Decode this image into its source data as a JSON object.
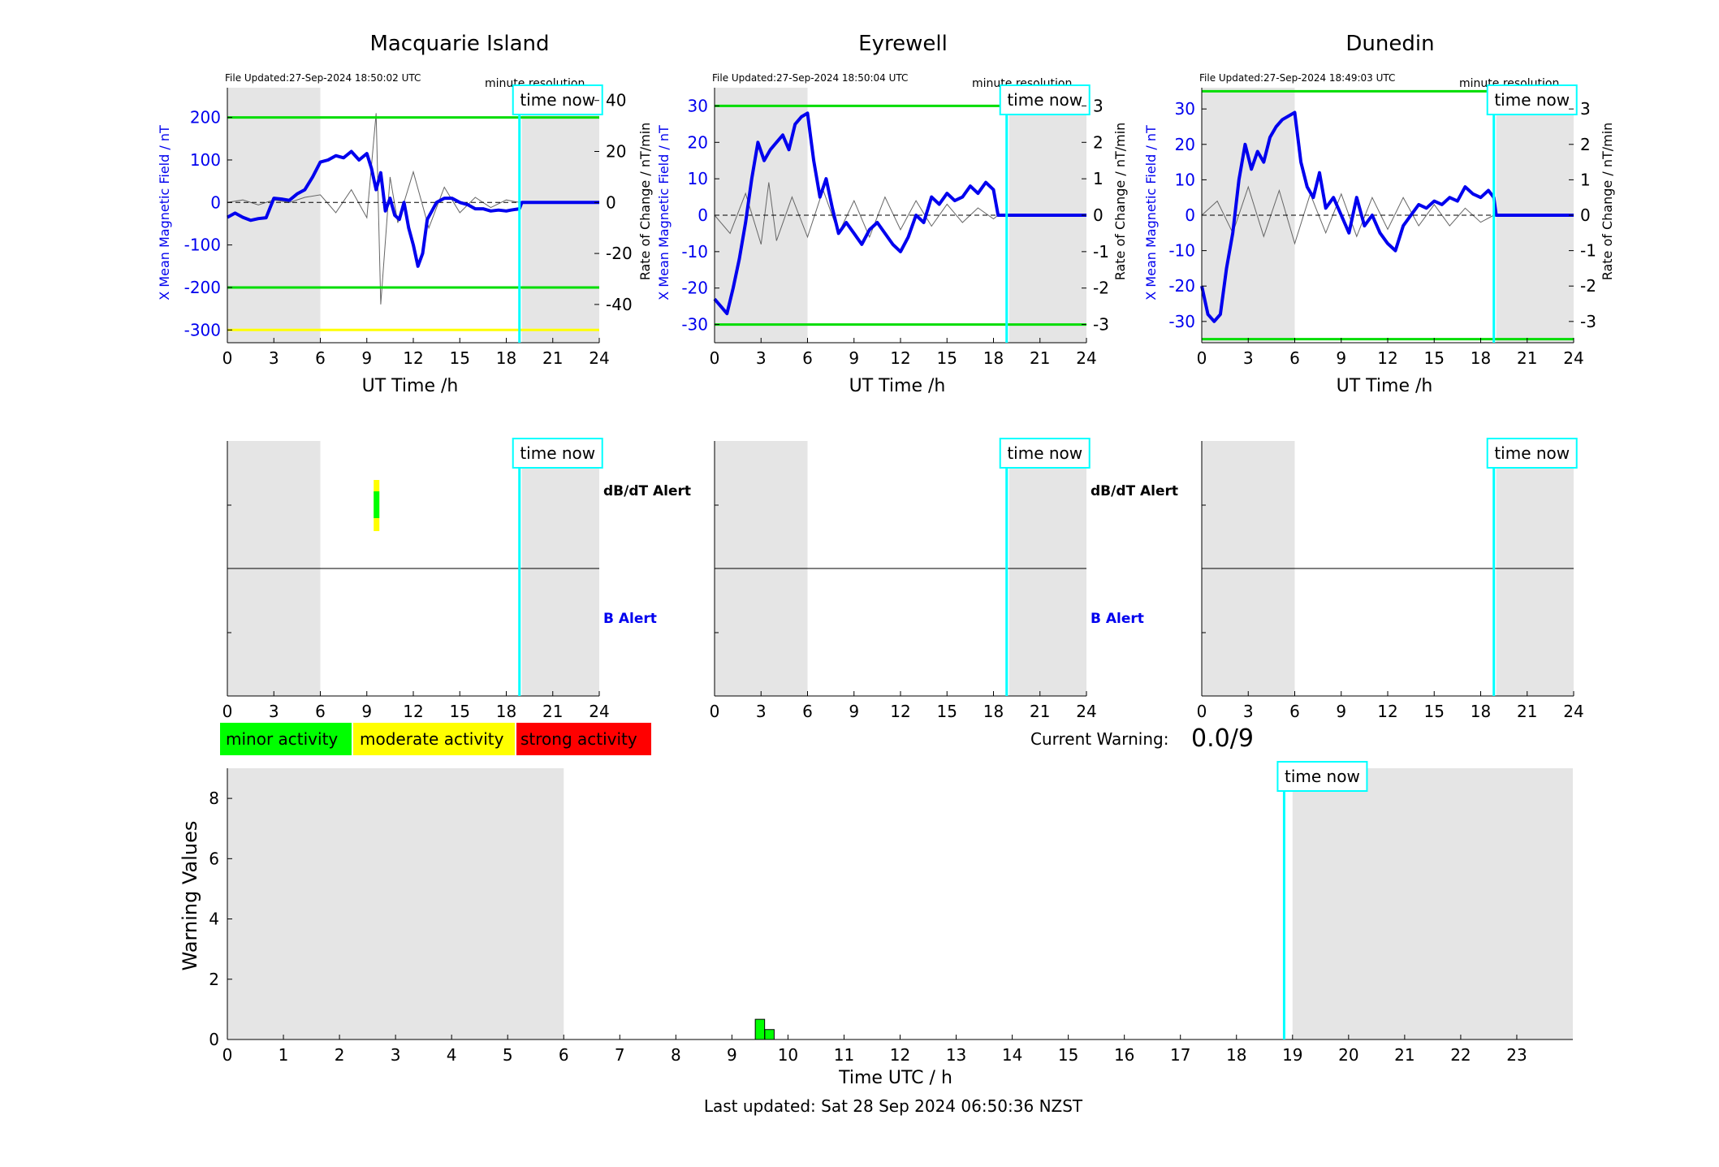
{
  "stations": [
    {
      "title": "Macquarie Island",
      "file_updated": "File Updated:27-Sep-2024 18:50:02 UTC",
      "resolution": "minute resolution",
      "ylabel": "X Mean Magnetic Field / nT",
      "y2label": "Rate of Change / nT/min",
      "xlabel": "UT Time /h",
      "time_now_label": "time now",
      "dbdt_alert_label": "dB/dT Alert",
      "b_alert_label": "B Alert"
    },
    {
      "title": "Eyrewell",
      "file_updated": "File Updated:27-Sep-2024 18:50:04 UTC",
      "resolution": "minute resolution",
      "ylabel": "X Mean Magnetic Field / nT",
      "y2label": "Rate of Change / nT/min",
      "xlabel": "UT Time /h",
      "time_now_label": "time now",
      "dbdt_alert_label": "dB/dT Alert",
      "b_alert_label": "B Alert"
    },
    {
      "title": "Dunedin",
      "file_updated": "File Updated:27-Sep-2024 18:49:03 UTC",
      "resolution": "minute resolution",
      "ylabel": "X Mean Magnetic Field / nT",
      "y2label": "Rate of Change / nT/min",
      "xlabel": "UT Time /h",
      "time_now_label": "time now",
      "dbdt_alert_label": "",
      "b_alert_label": ""
    }
  ],
  "legend": {
    "minor": "minor activity",
    "moderate": "moderate activity",
    "strong": "strong activity"
  },
  "current_warning": {
    "label": "Current Warning:",
    "value": "0.0/9"
  },
  "warning_chart": {
    "ylabel": "Warning Values",
    "xlabel": "Time UTC / h",
    "time_now_label": "time now"
  },
  "last_updated": "Last updated: Sat 28 Sep 2024 06:50:36 NZST",
  "colors": {
    "field_line": "#0000ee",
    "threshold_green": "#00dd00",
    "threshold_yellow": "#ffff00",
    "time_now": "#00ffff",
    "shade": "#e5e5e5",
    "minor": "#00ff00",
    "moderate": "#ffff00",
    "strong": "#ff0000"
  },
  "chart_data": [
    {
      "type": "line",
      "title": "Macquarie Island",
      "xlabel": "UT Time /h",
      "ylabel": "X Mean Magnetic Field / nT",
      "y2label": "Rate of Change / nT/min",
      "xlim": [
        0,
        24
      ],
      "ylim": [
        -330,
        270
      ],
      "y2lim": [
        -55,
        45
      ],
      "xticks": [
        0,
        3,
        6,
        9,
        12,
        15,
        18,
        21,
        24
      ],
      "yticks": [
        -300,
        -200,
        -100,
        0,
        100,
        200
      ],
      "y2ticks": [
        -40,
        -20,
        0,
        20,
        40
      ],
      "thresholds": [
        {
          "value": 200,
          "color": "green"
        },
        {
          "value": -200,
          "color": "green"
        },
        {
          "value": -300,
          "color": "yellow"
        }
      ],
      "shaded_hours": [
        [
          0,
          6
        ],
        [
          19,
          24
        ]
      ],
      "time_now": 18.85,
      "grid": false,
      "series": [
        {
          "axis": "left",
          "color": "blue",
          "x": [
            0,
            0.5,
            1,
            1.5,
            2,
            2.5,
            3,
            3.5,
            4,
            4.5,
            5,
            5.5,
            6,
            6.5,
            7,
            7.5,
            8,
            8.5,
            9,
            9.3,
            9.6,
            9.9,
            10.2,
            10.5,
            10.8,
            11.1,
            11.4,
            11.7,
            12,
            12.3,
            12.6,
            12.9,
            13.2,
            13.5,
            14,
            14.5,
            15,
            15.5,
            16,
            16.5,
            17,
            17.5,
            18,
            18.3,
            18.85,
            19,
            24
          ],
          "y": [
            -35,
            -25,
            -35,
            -42,
            -38,
            -36,
            10,
            8,
            5,
            20,
            30,
            60,
            95,
            100,
            110,
            105,
            120,
            100,
            115,
            80,
            30,
            70,
            -20,
            10,
            -30,
            -40,
            0,
            -60,
            -100,
            -150,
            -120,
            -40,
            -20,
            0,
            10,
            10,
            0,
            -5,
            -15,
            -15,
            -20,
            -18,
            -20,
            -18,
            -15,
            0,
            0
          ]
        },
        {
          "axis": "right",
          "color": "gray",
          "x": [
            0,
            1,
            2,
            3,
            4,
            5,
            6,
            7,
            8,
            9,
            9.6,
            9.9,
            10.5,
            11,
            12,
            13,
            14,
            15,
            16,
            17,
            18,
            18.85
          ],
          "y": [
            0,
            1,
            -1,
            1,
            0,
            2,
            3,
            -4,
            5,
            -6,
            35,
            -40,
            10,
            -8,
            12,
            -10,
            6,
            -4,
            2,
            -2,
            1,
            0
          ]
        }
      ]
    },
    {
      "type": "line",
      "title": "Eyrewell",
      "xlabel": "UT Time /h",
      "ylabel": "X Mean Magnetic Field / nT",
      "y2label": "Rate of Change / nT/min",
      "xlim": [
        0,
        24
      ],
      "ylim": [
        -35,
        35
      ],
      "y2lim": [
        -3.5,
        3.5
      ],
      "xticks": [
        0,
        3,
        6,
        9,
        12,
        15,
        18,
        21,
        24
      ],
      "yticks": [
        -30,
        -20,
        -10,
        0,
        10,
        20,
        30
      ],
      "y2ticks": [
        -3,
        -2,
        -1,
        0,
        1,
        2,
        3
      ],
      "thresholds": [
        {
          "value": 30,
          "color": "green"
        },
        {
          "value": -30,
          "color": "green"
        }
      ],
      "shaded_hours": [
        [
          0,
          6
        ],
        [
          19,
          24
        ]
      ],
      "time_now": 18.85,
      "grid": false,
      "series": [
        {
          "axis": "left",
          "color": "blue",
          "x": [
            0,
            0.4,
            0.8,
            1.2,
            1.6,
            2,
            2.4,
            2.8,
            3.2,
            3.6,
            4,
            4.4,
            4.8,
            5.2,
            5.6,
            6,
            6.4,
            6.8,
            7.2,
            7.6,
            8,
            8.5,
            9,
            9.5,
            10,
            10.5,
            11,
            11.5,
            12,
            12.5,
            13,
            13.5,
            14,
            14.5,
            15,
            15.5,
            16,
            16.5,
            17,
            17.5,
            18,
            18.3,
            18.85,
            19,
            24
          ],
          "y": [
            -23,
            -25,
            -27,
            -20,
            -12,
            -2,
            10,
            20,
            15,
            18,
            20,
            22,
            18,
            25,
            27,
            28,
            15,
            5,
            10,
            2,
            -5,
            -2,
            -5,
            -8,
            -4,
            -2,
            -5,
            -8,
            -10,
            -6,
            0,
            -2,
            5,
            3,
            6,
            4,
            5,
            8,
            6,
            9,
            7,
            0,
            0,
            0,
            0
          ]
        },
        {
          "axis": "right",
          "color": "gray",
          "x": [
            0,
            1,
            2,
            3,
            3.5,
            4,
            5,
            6,
            7,
            8,
            9,
            10,
            11,
            12,
            13,
            14,
            15,
            16,
            17,
            18,
            18.3
          ],
          "y": [
            0,
            -0.5,
            0.6,
            -0.8,
            0.9,
            -0.7,
            0.5,
            -0.6,
            0.7,
            -0.5,
            0.4,
            -0.6,
            0.5,
            -0.4,
            0.4,
            -0.3,
            0.3,
            -0.2,
            0.2,
            -0.1,
            0
          ]
        }
      ]
    },
    {
      "type": "line",
      "title": "Dunedin",
      "xlabel": "UT Time /h",
      "ylabel": "X Mean Magnetic Field / nT",
      "y2label": "Rate of Change / nT/min",
      "xlim": [
        0,
        24
      ],
      "ylim": [
        -36,
        36
      ],
      "y2lim": [
        -3.6,
        3.6
      ],
      "xticks": [
        0,
        3,
        6,
        9,
        12,
        15,
        18,
        21,
        24
      ],
      "yticks": [
        -30,
        -20,
        -10,
        0,
        10,
        20,
        30
      ],
      "y2ticks": [
        -3,
        -2,
        -1,
        0,
        1,
        2,
        3
      ],
      "thresholds": [
        {
          "value": 35,
          "color": "green"
        },
        {
          "value": -35,
          "color": "green"
        }
      ],
      "shaded_hours": [
        [
          0,
          6
        ],
        [
          19,
          24
        ]
      ],
      "time_now": 18.85,
      "grid": false,
      "series": [
        {
          "axis": "left",
          "color": "blue",
          "x": [
            0,
            0.4,
            0.8,
            1.2,
            1.6,
            2,
            2.4,
            2.8,
            3.2,
            3.6,
            4,
            4.4,
            4.8,
            5.2,
            5.6,
            6,
            6.4,
            6.8,
            7.2,
            7.6,
            8,
            8.5,
            9,
            9.5,
            10,
            10.5,
            11,
            11.5,
            12,
            12.5,
            13,
            13.5,
            14,
            14.5,
            15,
            15.5,
            16,
            16.5,
            17,
            17.5,
            18,
            18.5,
            18.85,
            19,
            24
          ],
          "y": [
            -20,
            -28,
            -30,
            -28,
            -15,
            -5,
            10,
            20,
            13,
            18,
            15,
            22,
            25,
            27,
            28,
            29,
            15,
            8,
            5,
            12,
            2,
            5,
            0,
            -5,
            5,
            -3,
            0,
            -5,
            -8,
            -10,
            -3,
            0,
            3,
            2,
            4,
            3,
            5,
            4,
            8,
            6,
            5,
            7,
            5,
            0,
            0
          ]
        },
        {
          "axis": "right",
          "color": "gray",
          "x": [
            0,
            1,
            2,
            3,
            4,
            5,
            6,
            7,
            8,
            9,
            10,
            11,
            12,
            13,
            14,
            15,
            16,
            17,
            18,
            18.85
          ],
          "y": [
            0,
            0.4,
            -0.5,
            0.8,
            -0.6,
            0.7,
            -0.8,
            0.6,
            -0.5,
            0.6,
            -0.6,
            0.5,
            -0.4,
            0.5,
            -0.3,
            0.3,
            -0.3,
            0.2,
            -0.2,
            0
          ]
        }
      ]
    },
    {
      "type": "bar",
      "title": "",
      "xlabel": "Time UTC / h",
      "ylabel": "Warning Values",
      "xlim": [
        0,
        24
      ],
      "ylim": [
        0,
        9
      ],
      "xticks": [
        0,
        1,
        2,
        3,
        4,
        5,
        6,
        7,
        8,
        9,
        10,
        11,
        12,
        13,
        14,
        15,
        16,
        17,
        18,
        19,
        20,
        21,
        22,
        23
      ],
      "yticks": [
        0,
        2,
        4,
        6,
        8
      ],
      "shaded_hours": [
        [
          0,
          6
        ],
        [
          19,
          24
        ]
      ],
      "time_now": 18.85,
      "grid": false,
      "bars": [
        {
          "x": 9.5,
          "value": 0.67,
          "color": "green"
        },
        {
          "x": 9.67,
          "value": 0.33,
          "color": "green"
        }
      ]
    }
  ]
}
